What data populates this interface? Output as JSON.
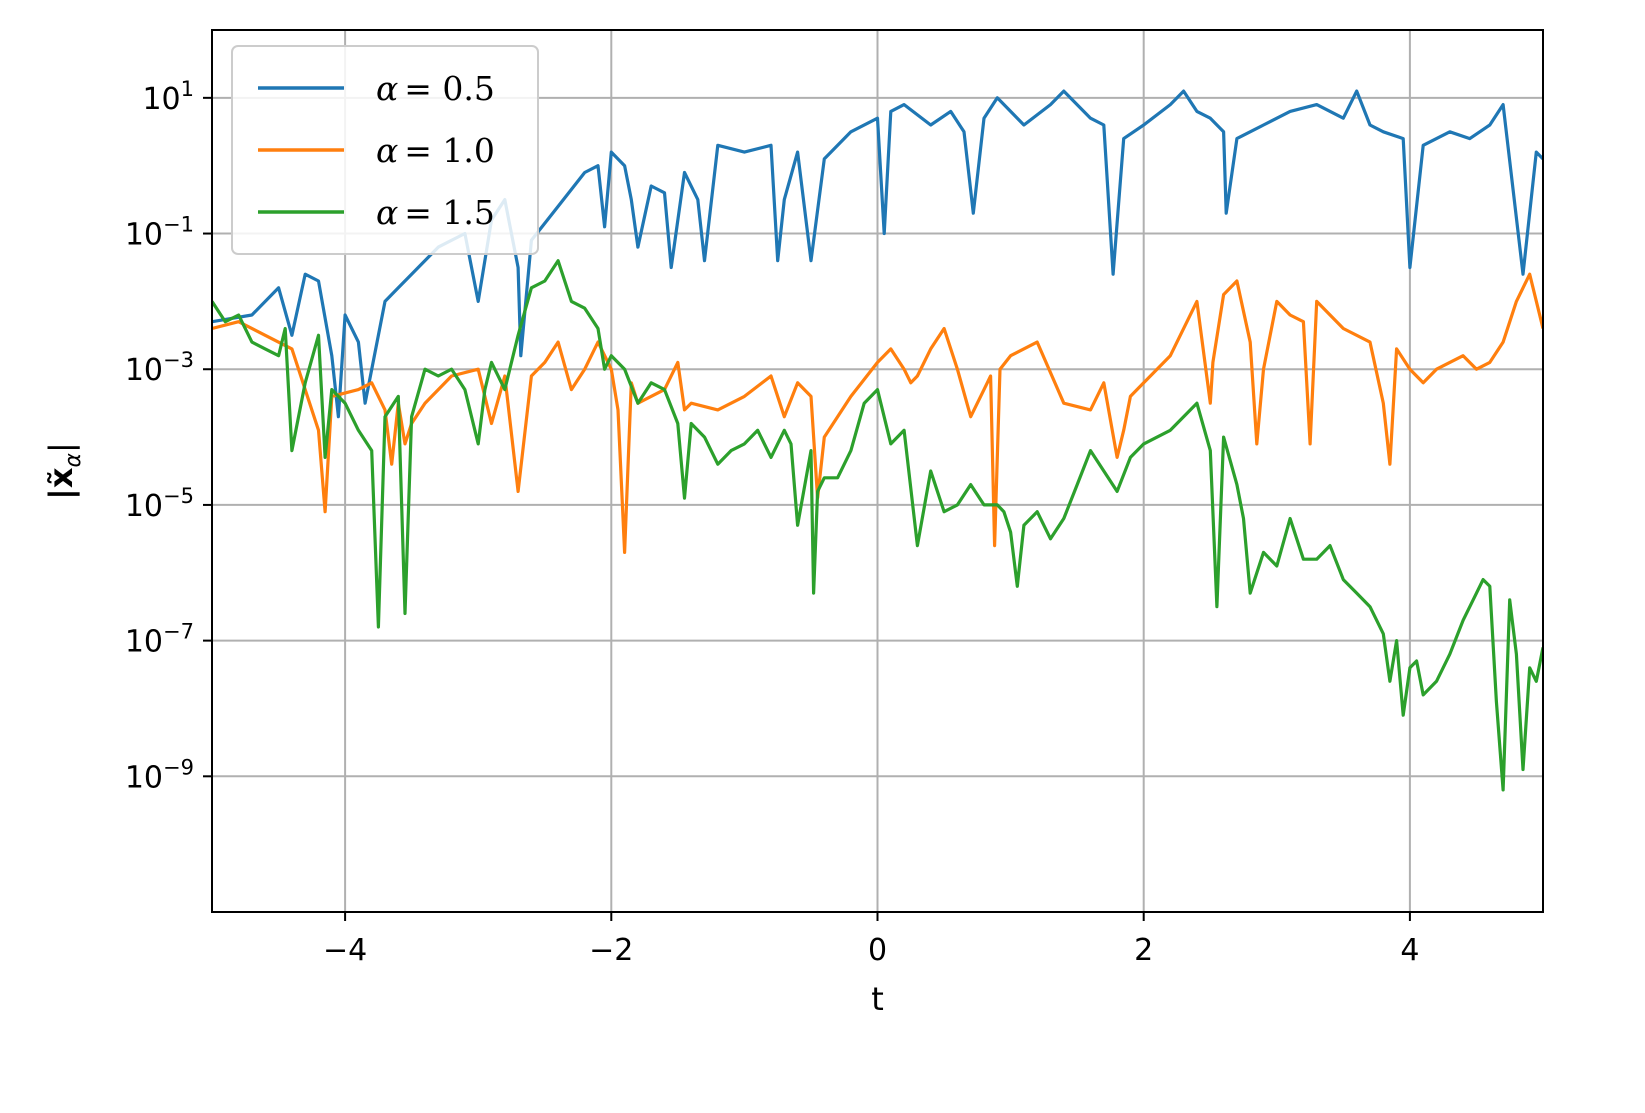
{
  "chart_data": {
    "type": "line",
    "xlabel": "t",
    "ylabel": "|x̃α|",
    "xlim": [
      -5,
      5
    ],
    "ylim_log10": [
      -11,
      2
    ],
    "yscale": "log",
    "grid": true,
    "legend_position": "top-left",
    "x_ticks": [
      -4,
      -2,
      0,
      2,
      4
    ],
    "x_tick_labels": [
      "−4",
      "−2",
      "0",
      "2",
      "4"
    ],
    "y_ticks_log10": [
      1,
      -1,
      -3,
      -5,
      -7,
      -9
    ],
    "y_tick_labels": [
      "10",
      "10",
      "10",
      "10",
      "10",
      "10"
    ],
    "y_tick_exponents": [
      "1",
      "−1",
      "−3",
      "−5",
      "−7",
      "−9"
    ],
    "series": [
      {
        "name": "α = 0.5",
        "legend_symbol": "α",
        "legend_value": "= 0.5",
        "color": "#1f77b4",
        "x": [
          -5,
          -4.7,
          -4.5,
          -4.4,
          -4.3,
          -4.2,
          -4.1,
          -4.05,
          -4.0,
          -3.9,
          -3.85,
          -3.7,
          -3.6,
          -3.5,
          -3.3,
          -3.1,
          -3.0,
          -2.9,
          -2.8,
          -2.7,
          -2.68,
          -2.6,
          -2.4,
          -2.2,
          -2.1,
          -2.05,
          -2.0,
          -1.9,
          -1.85,
          -1.8,
          -1.7,
          -1.6,
          -1.55,
          -1.45,
          -1.35,
          -1.3,
          -1.2,
          -1.0,
          -0.8,
          -0.75,
          -0.7,
          -0.6,
          -0.5,
          -0.4,
          -0.2,
          0.0,
          0.05,
          0.1,
          0.2,
          0.4,
          0.55,
          0.65,
          0.72,
          0.8,
          0.9,
          1.1,
          1.3,
          1.4,
          1.6,
          1.7,
          1.77,
          1.85,
          2.0,
          2.2,
          2.3,
          2.4,
          2.5,
          2.6,
          2.62,
          2.7,
          2.9,
          3.1,
          3.3,
          3.5,
          3.6,
          3.7,
          3.8,
          3.95,
          4.0,
          4.1,
          4.3,
          4.45,
          4.6,
          4.7,
          4.85,
          4.95,
          5.0
        ],
        "y_log10": [
          -2.3,
          -2.2,
          -1.8,
          -2.5,
          -1.6,
          -1.7,
          -2.8,
          -3.7,
          -2.2,
          -2.6,
          -3.5,
          -2.0,
          -1.8,
          -1.6,
          -1.2,
          -1.0,
          -2.0,
          -0.8,
          -0.5,
          -1.5,
          -2.8,
          -1.1,
          -0.6,
          -0.1,
          0.0,
          -0.9,
          0.2,
          0.0,
          -0.5,
          -1.2,
          -0.3,
          -0.4,
          -1.5,
          -0.1,
          -0.5,
          -1.4,
          0.3,
          0.2,
          0.3,
          -1.4,
          -0.5,
          0.2,
          -1.4,
          0.1,
          0.5,
          0.7,
          -1.0,
          0.8,
          0.9,
          0.6,
          0.8,
          0.5,
          -0.7,
          0.7,
          1.0,
          0.6,
          0.9,
          1.1,
          0.7,
          0.6,
          -1.6,
          0.4,
          0.6,
          0.9,
          1.1,
          0.8,
          0.7,
          0.5,
          -0.7,
          0.4,
          0.6,
          0.8,
          0.9,
          0.7,
          1.1,
          0.6,
          0.5,
          0.4,
          -1.5,
          0.3,
          0.5,
          0.4,
          0.6,
          0.9,
          -1.6,
          0.2,
          0.1
        ]
      },
      {
        "name": "α = 1.0",
        "legend_symbol": "α",
        "legend_value": "= 1.0",
        "color": "#ff7f0e",
        "x": [
          -5,
          -4.8,
          -4.6,
          -4.4,
          -4.3,
          -4.2,
          -4.15,
          -4.1,
          -3.9,
          -3.8,
          -3.7,
          -3.65,
          -3.6,
          -3.55,
          -3.5,
          -3.4,
          -3.2,
          -3.0,
          -2.9,
          -2.8,
          -2.7,
          -2.6,
          -2.5,
          -2.4,
          -2.3,
          -2.2,
          -2.1,
          -2.0,
          -1.95,
          -1.9,
          -1.85,
          -1.8,
          -1.6,
          -1.5,
          -1.45,
          -1.4,
          -1.2,
          -1.0,
          -0.8,
          -0.7,
          -0.6,
          -0.5,
          -0.45,
          -0.4,
          -0.2,
          0.0,
          0.1,
          0.2,
          0.25,
          0.3,
          0.4,
          0.5,
          0.6,
          0.7,
          0.8,
          0.85,
          0.88,
          0.92,
          1.0,
          1.2,
          1.4,
          1.6,
          1.7,
          1.8,
          1.85,
          1.9,
          2.0,
          2.2,
          2.4,
          2.5,
          2.52,
          2.6,
          2.7,
          2.8,
          2.85,
          2.9,
          3.0,
          3.1,
          3.2,
          3.25,
          3.3,
          3.5,
          3.7,
          3.8,
          3.85,
          3.9,
          4.0,
          4.1,
          4.2,
          4.4,
          4.5,
          4.6,
          4.7,
          4.8,
          4.9,
          5.0
        ],
        "y_log10": [
          -2.4,
          -2.3,
          -2.5,
          -2.7,
          -3.3,
          -3.9,
          -5.1,
          -3.4,
          -3.3,
          -3.2,
          -3.6,
          -4.4,
          -3.5,
          -4.1,
          -3.8,
          -3.5,
          -3.1,
          -3.0,
          -3.8,
          -3.1,
          -4.8,
          -3.1,
          -2.9,
          -2.6,
          -3.3,
          -3.0,
          -2.6,
          -3.0,
          -3.6,
          -5.7,
          -3.2,
          -3.5,
          -3.3,
          -2.9,
          -3.6,
          -3.5,
          -3.6,
          -3.4,
          -3.1,
          -3.7,
          -3.2,
          -3.4,
          -4.9,
          -4.0,
          -3.4,
          -2.9,
          -2.7,
          -3.0,
          -3.2,
          -3.1,
          -2.7,
          -2.4,
          -3.0,
          -3.7,
          -3.3,
          -3.1,
          -5.6,
          -3.0,
          -2.8,
          -2.6,
          -3.5,
          -3.6,
          -3.2,
          -4.3,
          -3.9,
          -3.4,
          -3.2,
          -2.8,
          -2.0,
          -3.5,
          -2.9,
          -1.9,
          -1.7,
          -2.6,
          -4.1,
          -3.0,
          -2.0,
          -2.2,
          -2.3,
          -4.1,
          -2.0,
          -2.4,
          -2.6,
          -3.5,
          -4.4,
          -2.7,
          -3.0,
          -3.2,
          -3.0,
          -2.8,
          -3.0,
          -2.9,
          -2.6,
          -2.0,
          -1.6,
          -2.4
        ]
      },
      {
        "name": "α = 1.5",
        "legend_symbol": "α",
        "legend_value": "= 1.5",
        "color": "#2ca02c",
        "x": [
          -5,
          -4.9,
          -4.8,
          -4.7,
          -4.6,
          -4.5,
          -4.45,
          -4.4,
          -4.3,
          -4.2,
          -4.15,
          -4.1,
          -4.0,
          -3.9,
          -3.8,
          -3.75,
          -3.7,
          -3.6,
          -3.55,
          -3.5,
          -3.4,
          -3.3,
          -3.2,
          -3.1,
          -3.0,
          -2.95,
          -2.9,
          -2.8,
          -2.7,
          -2.6,
          -2.5,
          -2.4,
          -2.3,
          -2.2,
          -2.1,
          -2.05,
          -2.0,
          -1.9,
          -1.8,
          -1.7,
          -1.6,
          -1.5,
          -1.45,
          -1.4,
          -1.3,
          -1.2,
          -1.1,
          -1.0,
          -0.9,
          -0.8,
          -0.7,
          -0.65,
          -0.6,
          -0.5,
          -0.48,
          -0.45,
          -0.4,
          -0.3,
          -0.2,
          -0.1,
          0.0,
          0.1,
          0.2,
          0.3,
          0.4,
          0.5,
          0.6,
          0.7,
          0.8,
          0.9,
          0.95,
          1.0,
          1.05,
          1.1,
          1.2,
          1.3,
          1.4,
          1.5,
          1.6,
          1.7,
          1.8,
          1.9,
          2.0,
          2.2,
          2.4,
          2.5,
          2.55,
          2.6,
          2.7,
          2.75,
          2.8,
          2.9,
          3.0,
          3.1,
          3.2,
          3.3,
          3.4,
          3.5,
          3.6,
          3.7,
          3.8,
          3.85,
          3.9,
          3.95,
          4.0,
          4.05,
          4.1,
          4.2,
          4.3,
          4.4,
          4.5,
          4.55,
          4.6,
          4.65,
          4.7,
          4.75,
          4.8,
          4.85,
          4.9,
          4.95,
          5.0
        ],
        "y_log10": [
          -2.0,
          -2.3,
          -2.2,
          -2.6,
          -2.7,
          -2.8,
          -2.4,
          -4.2,
          -3.2,
          -2.5,
          -4.3,
          -3.3,
          -3.5,
          -3.9,
          -4.2,
          -6.8,
          -3.7,
          -3.4,
          -6.6,
          -3.7,
          -3.0,
          -3.1,
          -3.0,
          -3.3,
          -4.1,
          -3.3,
          -2.9,
          -3.3,
          -2.5,
          -1.8,
          -1.7,
          -1.4,
          -2.0,
          -2.1,
          -2.4,
          -3.0,
          -2.8,
          -3.0,
          -3.5,
          -3.2,
          -3.3,
          -3.8,
          -4.9,
          -3.8,
          -4.0,
          -4.4,
          -4.2,
          -4.1,
          -3.9,
          -4.3,
          -3.9,
          -4.1,
          -5.3,
          -4.2,
          -6.3,
          -4.8,
          -4.6,
          -4.6,
          -4.2,
          -3.5,
          -3.3,
          -4.1,
          -3.9,
          -5.6,
          -4.5,
          -5.1,
          -5.0,
          -4.7,
          -5.0,
          -5.0,
          -5.1,
          -5.4,
          -6.2,
          -5.3,
          -5.1,
          -5.5,
          -5.2,
          -4.7,
          -4.2,
          -4.5,
          -4.8,
          -4.3,
          -4.1,
          -3.9,
          -3.5,
          -4.2,
          -6.5,
          -4.0,
          -4.7,
          -5.2,
          -6.3,
          -5.7,
          -5.9,
          -5.2,
          -5.8,
          -5.8,
          -5.6,
          -6.1,
          -6.3,
          -6.5,
          -6.9,
          -7.6,
          -7.0,
          -8.1,
          -7.4,
          -7.3,
          -7.8,
          -7.6,
          -7.2,
          -6.7,
          -6.3,
          -6.1,
          -6.2,
          -7.9,
          -9.2,
          -6.4,
          -7.2,
          -8.9,
          -7.4,
          -7.6,
          -7.1
        ]
      }
    ]
  }
}
